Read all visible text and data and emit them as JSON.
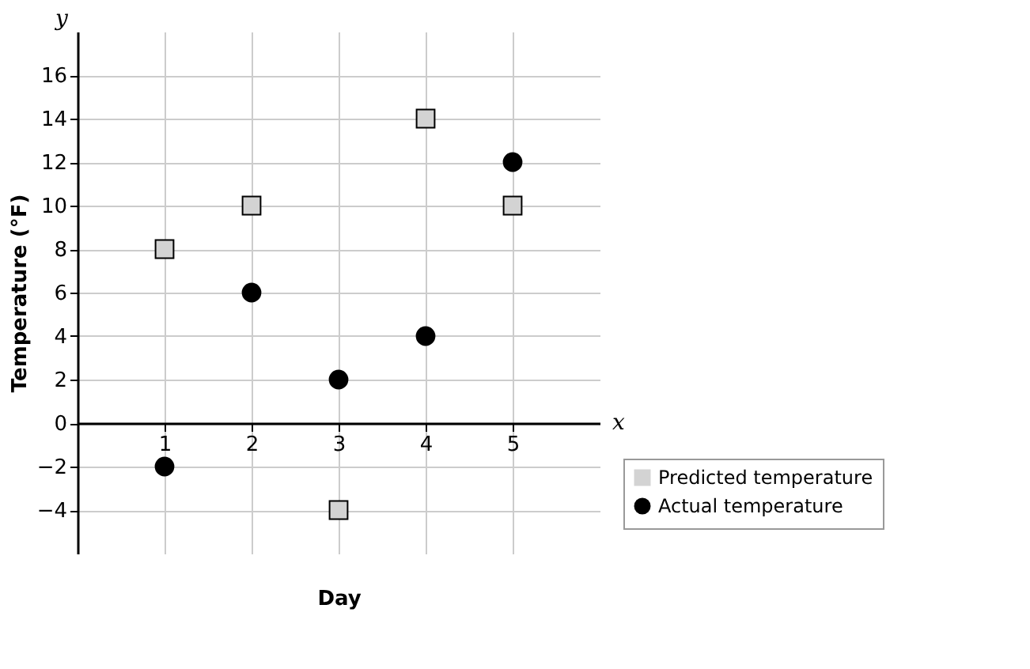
{
  "chart_data": {
    "type": "scatter",
    "xlabel": "Day",
    "ylabel": "Temperature (°F)",
    "annotations": [
      "x",
      "y"
    ],
    "x": [
      1,
      2,
      3,
      4,
      5
    ],
    "series": [
      {
        "name": "Predicted temperature",
        "color": "#d3d3d3",
        "marker": "square",
        "values": [
          8,
          10,
          -4,
          14,
          10
        ]
      },
      {
        "name": "Actual temperature",
        "color": "#000000",
        "marker": "circle",
        "values": [
          -2,
          6,
          2,
          4,
          12
        ]
      }
    ],
    "xlim": [
      0,
      6
    ],
    "ylim": [
      -6,
      18
    ],
    "xticks": [
      1,
      2,
      3,
      4,
      5
    ],
    "yticks": [
      -4,
      -2,
      0,
      2,
      4,
      6,
      8,
      10,
      12,
      14,
      16
    ],
    "grid": true,
    "legend": "bottom right"
  }
}
